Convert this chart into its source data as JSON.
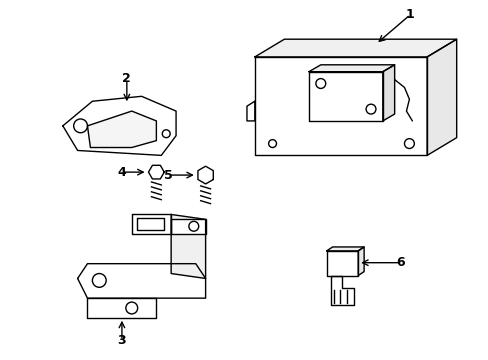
{
  "background_color": "#ffffff",
  "line_color": "#000000",
  "line_width": 1.0,
  "label_fontsize": 9,
  "labels": [
    "1",
    "2",
    "3",
    "4",
    "5",
    "6"
  ]
}
